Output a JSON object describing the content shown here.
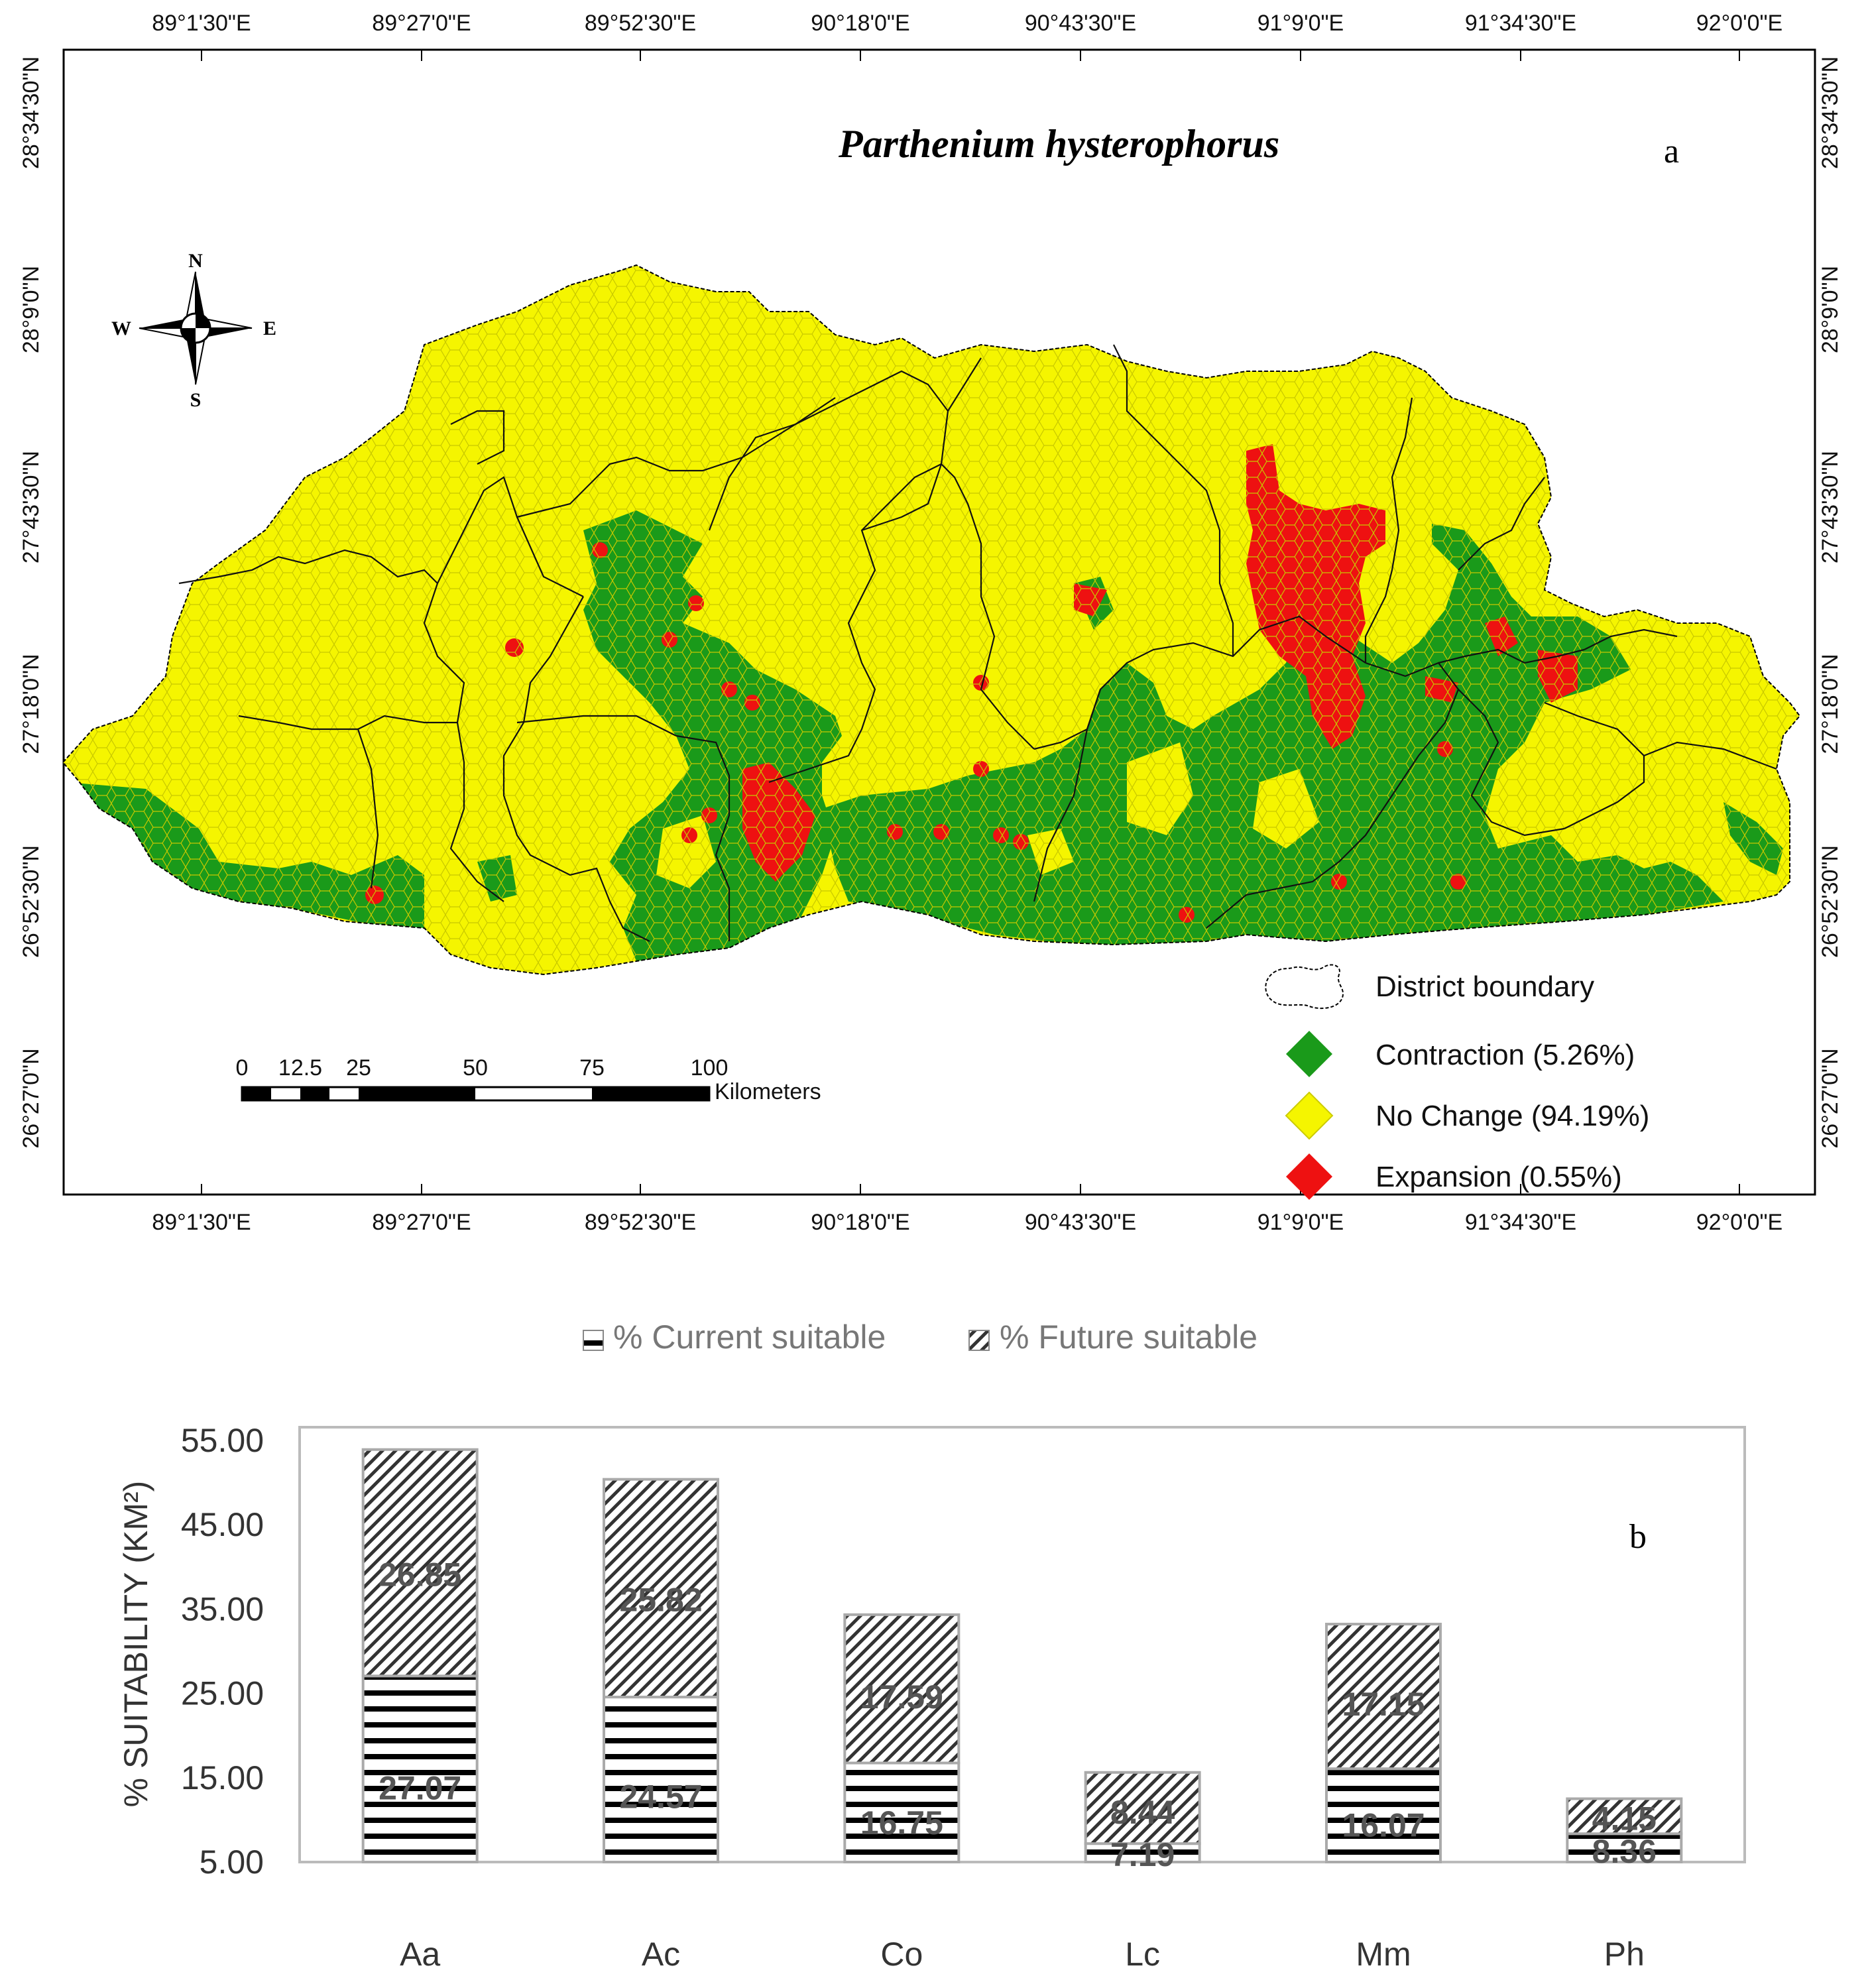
{
  "map": {
    "title": "Parthenium hysterophorus",
    "panel_label": "a",
    "top_lon_labels": [
      "89°1'30\"E",
      "89°27'0\"E",
      "89°52'30\"E",
      "90°18'0\"E",
      "90°43'30\"E",
      "91°9'0\"E",
      "91°34'30\"E",
      "92°0'0\"E"
    ],
    "bottom_lon_labels": [
      "89°1'30\"E",
      "89°27'0\"E",
      "89°52'30\"E",
      "90°18'0\"E",
      "90°43'30\"E",
      "91°9'0\"E",
      "91°34'30\"E",
      "92°0'0\"E"
    ],
    "lat_labels": [
      "28°34'30\"N",
      "28°9'0\"N",
      "27°43'30\"N",
      "27°18'0\"N",
      "26°52'30\"N",
      "26°27'0\"N"
    ],
    "compass": {
      "n": "N",
      "s": "S",
      "e": "E",
      "w": "W"
    },
    "scale": {
      "ticks": [
        "0",
        "12.5",
        "25",
        "50",
        "75",
        "100"
      ],
      "unit": "Kilometers"
    },
    "legend": [
      {
        "label": "District boundary",
        "color": "#ffffff",
        "symbol": "boundary"
      },
      {
        "label": "Contraction (5.26%)",
        "color": "#1a9a1a",
        "symbol": "diamond"
      },
      {
        "label": "No Change (94.19%)",
        "color": "#f5f500",
        "symbol": "diamond"
      },
      {
        "label": "Expansion (0.55%)",
        "color": "#ee1111",
        "symbol": "diamond"
      }
    ],
    "colors": {
      "no_change": "#f5f500",
      "contraction": "#1a9a1a",
      "expansion": "#ee1111"
    }
  },
  "chart_data": {
    "type": "bar",
    "stacked": true,
    "panel_label": "b",
    "categories": [
      "Aa",
      "Ac",
      "Co",
      "Lc",
      "Mm",
      "Ph"
    ],
    "series": [
      {
        "name": "% Current suitable",
        "values": [
          27.07,
          24.57,
          16.75,
          7.19,
          16.07,
          8.36
        ],
        "labels": [
          "27.07",
          "24.57",
          "16.75",
          "7.19",
          "16.07",
          "8.36"
        ],
        "pattern": "horizontal-lines"
      },
      {
        "name": "% Future suitable",
        "values": [
          26.85,
          25.82,
          17.59,
          8.44,
          17.15,
          4.15
        ],
        "labels": [
          "26.85",
          "25.82",
          "17.59",
          "8.44",
          "17.15",
          "4.15"
        ],
        "pattern": "diagonal-hatch"
      }
    ],
    "ylabel": "% SUITABILITY (KM²)",
    "yticks": [
      "55.00",
      "45.00",
      "35.00",
      "25.00",
      "15.00",
      "5.00"
    ],
    "ytick_values": [
      55,
      45,
      35,
      25,
      15,
      5
    ],
    "ylim": [
      5,
      55
    ],
    "grid": false,
    "legend_position": "top"
  }
}
